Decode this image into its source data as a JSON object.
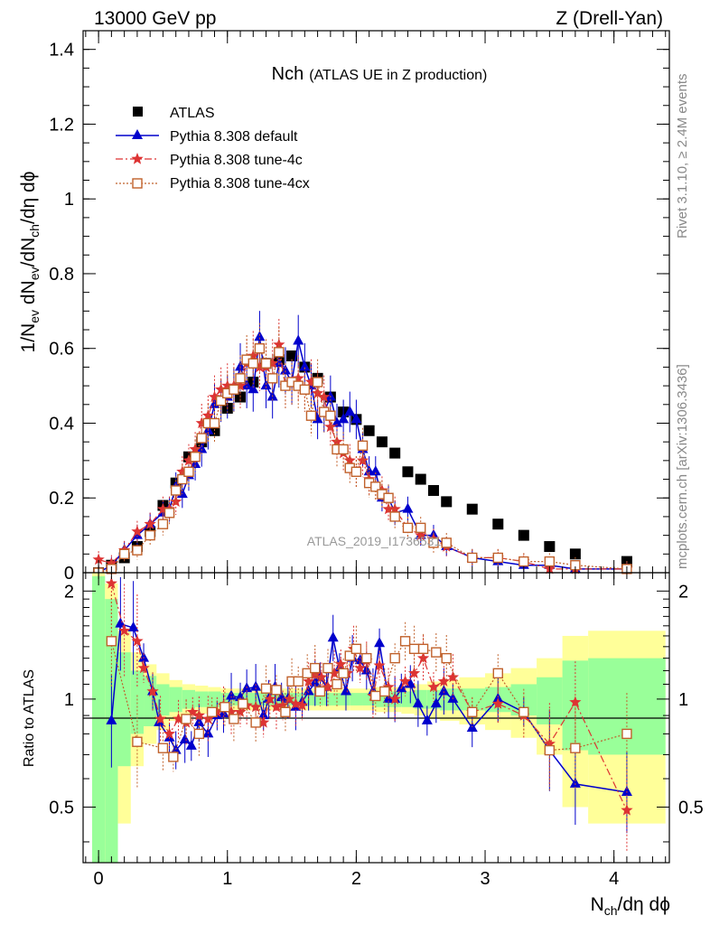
{
  "header": {
    "left": "13000 GeV pp",
    "right": "Z (Drell-Yan)"
  },
  "title_main": "Nch",
  "title_sub": "(ATLAS UE in Z production)",
  "watermark": "ATLAS_2019_I1736531",
  "side_top": "Rivet 3.1.10, ≥ 2.4M events",
  "side_bottom": "mcplots.cern.ch [arXiv:1306.3436]",
  "ylabel_top": {
    "a": "1/N",
    "a_sub": "ev",
    "b": " dN",
    "b_sub": "ev",
    "c": "/dN",
    "c_sub": "ch",
    "d": "/dη dϕ"
  },
  "ylabel_bottom": "Ratio to ATLAS",
  "xlabel": {
    "a": "N",
    "a_sub": "ch",
    "b": "/dη dϕ"
  },
  "legend": [
    {
      "label": "ATLAS",
      "color": "#000000",
      "marker": "square"
    },
    {
      "label": "Pythia 8.308 default",
      "color": "#0000cc",
      "marker": "triangle"
    },
    {
      "label": "Pythia 8.308 tune-4c",
      "color": "#dd3333",
      "marker": "star"
    },
    {
      "label": "Pythia 8.308 tune-4cx",
      "color": "#c0612b",
      "marker": "open-square"
    }
  ],
  "chart_data": [
    {
      "type": "scatter",
      "panel": "main",
      "xlim": [
        -0.12,
        4.43
      ],
      "ylim": [
        0,
        1.45
      ],
      "yticks": [
        0,
        0.2,
        0.4,
        0.6,
        0.8,
        1,
        1.2,
        1.4
      ],
      "ytick_labels": [
        "0",
        "0.2",
        "0.4",
        "0.6",
        "0.8",
        "1",
        "1.2",
        "1.4"
      ],
      "series": [
        {
          "name": "ATLAS",
          "x": [
            0.0,
            0.1,
            0.2,
            0.3,
            0.4,
            0.5,
            0.6,
            0.7,
            0.8,
            0.9,
            1.0,
            1.1,
            1.2,
            1.3,
            1.4,
            1.5,
            1.6,
            1.7,
            1.8,
            1.9,
            2.0,
            2.1,
            2.2,
            2.3,
            2.4,
            2.5,
            2.6,
            2.7,
            2.9,
            3.1,
            3.3,
            3.5,
            3.7,
            4.1
          ],
          "y": [
            0.0,
            0.02,
            0.04,
            0.07,
            0.11,
            0.18,
            0.24,
            0.31,
            0.35,
            0.38,
            0.44,
            0.47,
            0.51,
            0.56,
            0.57,
            0.58,
            0.55,
            0.52,
            0.47,
            0.43,
            0.41,
            0.38,
            0.35,
            0.32,
            0.27,
            0.25,
            0.22,
            0.19,
            0.17,
            0.13,
            0.1,
            0.07,
            0.05,
            0.03
          ]
        },
        {
          "name": "Pythia 8.308 default",
          "x": [
            0.0,
            0.1,
            0.2,
            0.3,
            0.4,
            0.5,
            0.55,
            0.6,
            0.65,
            0.7,
            0.75,
            0.8,
            0.85,
            0.9,
            0.95,
            1.0,
            1.05,
            1.1,
            1.15,
            1.2,
            1.25,
            1.3,
            1.35,
            1.4,
            1.45,
            1.5,
            1.55,
            1.6,
            1.65,
            1.7,
            1.75,
            1.8,
            1.85,
            1.9,
            1.95,
            2.0,
            2.05,
            2.1,
            2.15,
            2.2,
            2.25,
            2.3,
            2.4,
            2.5,
            2.6,
            2.7,
            2.9,
            3.1,
            3.3,
            3.5,
            3.7,
            4.1
          ],
          "y": [
            0.0,
            0.02,
            0.06,
            0.1,
            0.13,
            0.16,
            0.17,
            0.23,
            0.21,
            0.26,
            0.29,
            0.33,
            0.38,
            0.45,
            0.46,
            0.47,
            0.49,
            0.55,
            0.5,
            0.49,
            0.63,
            0.5,
            0.47,
            0.56,
            0.54,
            0.51,
            0.62,
            0.55,
            0.5,
            0.41,
            0.43,
            0.47,
            0.4,
            0.41,
            0.43,
            0.41,
            0.33,
            0.27,
            0.27,
            0.2,
            0.2,
            0.16,
            0.17,
            0.1,
            0.1,
            0.07,
            0.04,
            0.03,
            0.02,
            0.02,
            0.01,
            0.01
          ]
        },
        {
          "name": "Pythia 8.308 tune-4c",
          "x": [
            0.0,
            0.1,
            0.2,
            0.3,
            0.4,
            0.5,
            0.55,
            0.6,
            0.65,
            0.7,
            0.75,
            0.8,
            0.85,
            0.9,
            0.95,
            1.0,
            1.05,
            1.1,
            1.15,
            1.2,
            1.25,
            1.3,
            1.35,
            1.4,
            1.45,
            1.5,
            1.55,
            1.6,
            1.65,
            1.7,
            1.75,
            1.8,
            1.85,
            1.9,
            1.95,
            2.0,
            2.05,
            2.1,
            2.15,
            2.2,
            2.25,
            2.3,
            2.4,
            2.5,
            2.6,
            2.7,
            2.9,
            3.1,
            3.3,
            3.5,
            3.7,
            4.1
          ],
          "y": [
            0.035,
            0.025,
            0.06,
            0.11,
            0.13,
            0.17,
            0.17,
            0.19,
            0.27,
            0.3,
            0.33,
            0.4,
            0.42,
            0.47,
            0.49,
            0.5,
            0.5,
            0.5,
            0.56,
            0.58,
            0.55,
            0.55,
            0.56,
            0.61,
            0.5,
            0.51,
            0.52,
            0.49,
            0.51,
            0.48,
            0.47,
            0.39,
            0.35,
            0.32,
            0.3,
            0.27,
            0.3,
            0.25,
            0.23,
            0.22,
            0.17,
            0.17,
            0.12,
            0.1,
            0.09,
            0.07,
            0.04,
            0.04,
            0.03,
            0.01,
            0.01,
            0.01
          ]
        },
        {
          "name": "Pythia 8.308 tune-4cx",
          "x": [
            0.0,
            0.1,
            0.2,
            0.3,
            0.4,
            0.5,
            0.55,
            0.6,
            0.65,
            0.7,
            0.75,
            0.8,
            0.85,
            0.9,
            0.95,
            1.0,
            1.05,
            1.1,
            1.15,
            1.2,
            1.25,
            1.3,
            1.35,
            1.4,
            1.45,
            1.5,
            1.55,
            1.6,
            1.65,
            1.7,
            1.75,
            1.8,
            1.85,
            1.9,
            1.95,
            2.0,
            2.05,
            2.1,
            2.15,
            2.2,
            2.25,
            2.3,
            2.4,
            2.5,
            2.6,
            2.7,
            2.9,
            3.1,
            3.3,
            3.5,
            3.7,
            4.1
          ],
          "y": [
            0.0,
            0.01,
            0.05,
            0.06,
            0.1,
            0.13,
            0.16,
            0.22,
            0.25,
            0.27,
            0.31,
            0.36,
            0.4,
            0.4,
            0.46,
            0.48,
            0.49,
            0.52,
            0.57,
            0.56,
            0.6,
            0.56,
            0.52,
            0.59,
            0.5,
            0.51,
            0.5,
            0.49,
            0.42,
            0.51,
            0.43,
            0.42,
            0.33,
            0.33,
            0.28,
            0.27,
            0.34,
            0.24,
            0.23,
            0.21,
            0.2,
            0.15,
            0.12,
            0.12,
            0.08,
            0.08,
            0.04,
            0.04,
            0.03,
            0.03,
            0.02,
            0.01
          ]
        }
      ]
    },
    {
      "type": "scatter",
      "panel": "ratio",
      "xlim": [
        -0.12,
        4.43
      ],
      "ylim": [
        0.35,
        2.25
      ],
      "yticks": [
        0.5,
        1,
        2
      ],
      "ytick_labels": [
        "0.5",
        "1",
        "2"
      ],
      "xticks": [
        0,
        1,
        2,
        3,
        4
      ],
      "xtick_labels": [
        "0",
        "1",
        "2",
        "3",
        "4"
      ],
      "reference_line": 1,
      "band_edges": [
        -0.05,
        0.05,
        0.15,
        0.25,
        0.35,
        0.45,
        0.55,
        0.65,
        0.75,
        0.85,
        0.95,
        1.05,
        1.15,
        1.25,
        1.35,
        1.45,
        1.55,
        1.65,
        1.75,
        1.85,
        1.95,
        2.05,
        2.15,
        2.25,
        2.35,
        2.45,
        2.55,
        2.65,
        2.8,
        3.0,
        3.2,
        3.4,
        3.6,
        3.8,
        4.4
      ],
      "band_stat_half": [
        1.2,
        0.9,
        0.35,
        0.2,
        0.16,
        0.1,
        0.08,
        0.06,
        0.05,
        0.05,
        0.04,
        0.04,
        0.04,
        0.04,
        0.04,
        0.04,
        0.04,
        0.04,
        0.04,
        0.04,
        0.04,
        0.04,
        0.05,
        0.05,
        0.05,
        0.06,
        0.06,
        0.07,
        0.07,
        0.08,
        0.1,
        0.15,
        0.28,
        0.3
      ],
      "band_total_half": [
        1.3,
        1.1,
        0.55,
        0.35,
        0.25,
        0.18,
        0.13,
        0.1,
        0.09,
        0.08,
        0.07,
        0.07,
        0.07,
        0.07,
        0.07,
        0.07,
        0.07,
        0.07,
        0.07,
        0.07,
        0.07,
        0.07,
        0.08,
        0.08,
        0.09,
        0.1,
        0.12,
        0.13,
        0.15,
        0.18,
        0.22,
        0.3,
        0.5,
        0.55
      ],
      "series": [
        {
          "name": "Pythia 8.308 default",
          "x": [
            0.1,
            0.17,
            0.27,
            0.35,
            0.42,
            0.47,
            0.55,
            0.6,
            0.67,
            0.72,
            0.78,
            0.85,
            0.92,
            0.97,
            1.03,
            1.1,
            1.15,
            1.22,
            1.28,
            1.32,
            1.37,
            1.42,
            1.47,
            1.53,
            1.58,
            1.63,
            1.68,
            1.72,
            1.77,
            1.82,
            1.87,
            1.92,
            1.97,
            2.03,
            2.08,
            2.13,
            2.18,
            2.25,
            2.3,
            2.35,
            2.42,
            2.48,
            2.55,
            2.62,
            2.68,
            2.75,
            2.9,
            3.1,
            3.3,
            3.5,
            3.7,
            4.1
          ],
          "y": [
            0.87,
            1.62,
            1.58,
            1.3,
            1.05,
            0.86,
            0.78,
            0.72,
            0.77,
            0.74,
            0.86,
            0.8,
            0.9,
            0.91,
            1.02,
            1.01,
            1.07,
            1.08,
            0.9,
            1.0,
            1.08,
            1.01,
            1.0,
            0.95,
            0.98,
            1.05,
            1.11,
            1.15,
            1.08,
            1.48,
            1.22,
            1.05,
            1.3,
            1.28,
            1.2,
            1.05,
            1.43,
            1.0,
            1.0,
            1.07,
            1.1,
            0.97,
            0.87,
            0.97,
            1.05,
            1.0,
            0.83,
            1.0,
            0.92,
            0.72,
            0.58,
            0.55
          ]
        },
        {
          "name": "Pythia 8.308 tune-4c",
          "x": [
            0.1,
            0.2,
            0.3,
            0.35,
            0.42,
            0.48,
            0.55,
            0.62,
            0.68,
            0.73,
            0.78,
            0.85,
            0.92,
            0.97,
            1.03,
            1.1,
            1.15,
            1.22,
            1.28,
            1.33,
            1.38,
            1.43,
            1.48,
            1.53,
            1.58,
            1.63,
            1.68,
            1.73,
            1.78,
            1.83,
            1.88,
            1.93,
            1.98,
            2.03,
            2.08,
            2.13,
            2.18,
            2.25,
            2.3,
            2.38,
            2.45,
            2.52,
            2.6,
            2.68,
            2.75,
            2.9,
            3.1,
            3.3,
            3.5,
            3.7,
            4.1
          ],
          "y": [
            2.1,
            1.55,
            1.45,
            1.22,
            1.05,
            0.88,
            0.8,
            0.88,
            0.86,
            0.92,
            0.9,
            0.88,
            0.92,
            0.96,
            0.92,
            0.92,
            0.96,
            0.95,
            0.86,
            1.0,
            0.95,
            0.96,
            1.0,
            0.97,
            0.96,
            1.12,
            1.17,
            1.15,
            1.08,
            1.18,
            1.25,
            1.18,
            1.38,
            1.22,
            1.28,
            1.02,
            1.24,
            1.08,
            1.0,
            1.12,
            1.18,
            1.3,
            1.08,
            1.12,
            1.15,
            0.92,
            0.97,
            0.9,
            0.75,
            0.98,
            0.49
          ]
        },
        {
          "name": "Pythia 8.308 tune-4cx",
          "x": [
            0.1,
            0.3,
            0.5,
            0.58,
            0.68,
            0.78,
            0.88,
            0.98,
            1.05,
            1.12,
            1.22,
            1.3,
            1.38,
            1.45,
            1.5,
            1.55,
            1.62,
            1.68,
            1.72,
            1.78,
            1.85,
            1.9,
            1.95,
            2.0,
            2.08,
            2.15,
            2.22,
            2.3,
            2.38,
            2.45,
            2.52,
            2.62,
            2.7,
            2.9,
            3.1,
            3.3,
            3.5,
            3.7,
            4.1
          ],
          "y": [
            1.45,
            0.76,
            0.73,
            0.69,
            0.88,
            0.8,
            0.92,
            0.95,
            0.88,
            0.97,
            0.86,
            1.07,
            1.06,
            0.92,
            1.12,
            1.12,
            1.18,
            1.22,
            1.05,
            1.22,
            1.1,
            1.18,
            1.32,
            1.38,
            1.3,
            1.02,
            1.05,
            1.3,
            1.45,
            1.38,
            1.38,
            1.35,
            1.3,
            0.92,
            1.18,
            0.92,
            0.72,
            0.73,
            0.8
          ]
        }
      ]
    }
  ]
}
